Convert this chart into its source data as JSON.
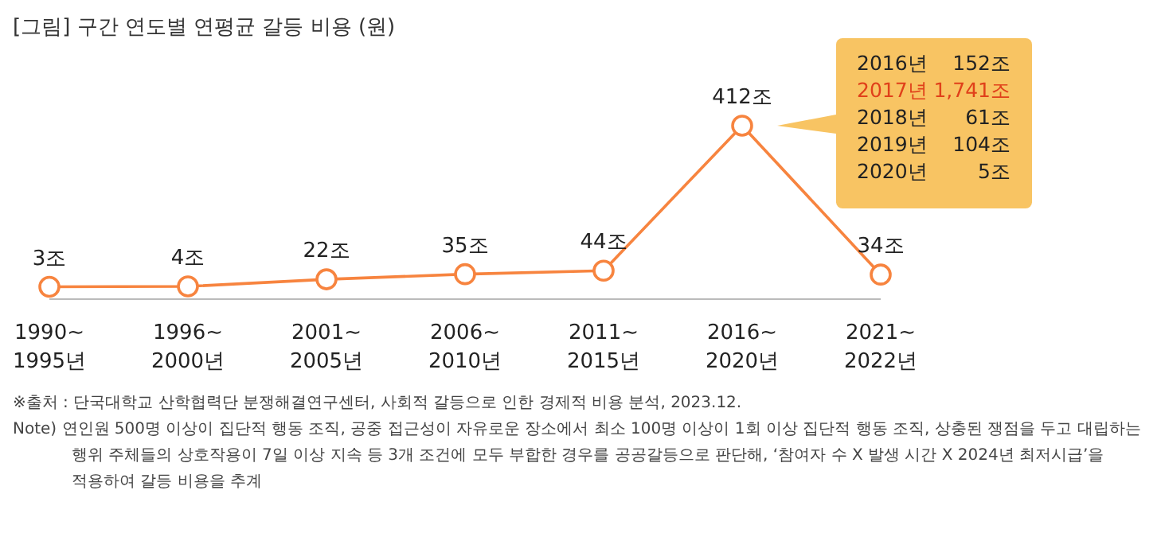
{
  "chart_data": {
    "type": "line",
    "title": "[그림] 구간 연도별 연평균 갈등 비용 (원)",
    "categories": [
      "1990~\n1995년",
      "1996~\n2000년",
      "2001~\n2005년",
      "2006~\n2010년",
      "2011~\n2015년",
      "2016~\n2020년",
      "2021~\n2022년"
    ],
    "values": [
      3,
      4,
      22,
      35,
      44,
      412,
      34
    ],
    "value_labels": [
      "3조",
      "4조",
      "22조",
      "35조",
      "44조",
      "412조",
      "34조"
    ],
    "color": "#f7843f",
    "marker": "circle",
    "annotations": [
      "2016년 152조",
      "2017년 1,741조",
      "2018년 61조",
      "2019년 104조",
      "2020년 5조",
      "※출처 : 단국대학교 산학협력단 분쟁해결연구센터, 사회적 갈등으로 인한 경제적 비용 분석, 2023.12.",
      "Note) 연인원 500명 이상이 집단적 행동 조직, 공중 접근성이 자유로운 장소에서 최소 100명 이상이 1회 이상 집단적 행동 조직, 상충된 쟁점을 두고 대립하는\n행위 주체들의 상호작용이 7일 이상 지속 등 3개 조건에 모두 부합한 경우를 공공갈등으로 판단해, ‘참여자 수 X 발생 시간 X 2024년 최저시급’을\n적용하여 갈등 비용을 추계"
    ]
  }
}
